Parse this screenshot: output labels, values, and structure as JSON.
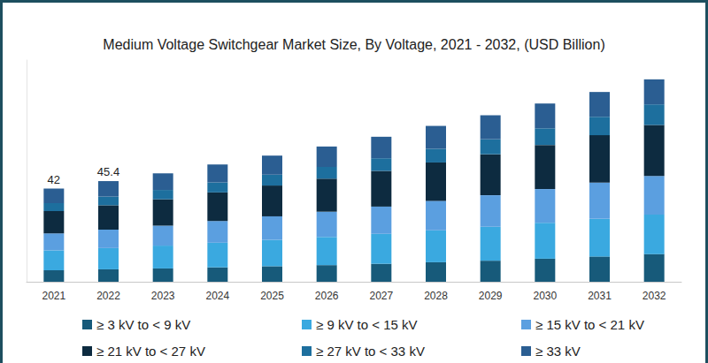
{
  "chart_data": {
    "type": "bar",
    "title": "Medium Voltage Switchgear Market Size, By Voltage, 2021 - 2032, (USD Billion)",
    "categories": [
      "2021",
      "2022",
      "2023",
      "2024",
      "2025",
      "2026",
      "2027",
      "2028",
      "2029",
      "2030",
      "2031",
      "2032"
    ],
    "series": [
      {
        "name": "≥ 3 kV to < 9 kV",
        "color": "#175a7a",
        "values": [
          5.2,
          5.6,
          6.0,
          6.5,
          7.0,
          7.5,
          8.1,
          8.8,
          9.5,
          10.4,
          11.4,
          12.5
        ]
      },
      {
        "name": "≥ 9 kV to < 15 kV",
        "color": "#3aa9e0",
        "values": [
          8.9,
          9.6,
          10.3,
          11.1,
          11.9,
          12.7,
          13.5,
          14.4,
          15.3,
          16.2,
          17.0,
          17.8
        ]
      },
      {
        "name": "≥ 15 kV to < 21 kV",
        "color": "#5b9fe0",
        "values": [
          7.7,
          8.3,
          9.0,
          9.8,
          10.6,
          11.4,
          12.3,
          13.3,
          14.2,
          15.2,
          16.3,
          17.4
        ]
      },
      {
        "name": "≥ 21 kV to < 27 kV",
        "color": "#0d2b40",
        "values": [
          10.1,
          11.0,
          11.9,
          12.9,
          13.9,
          14.9,
          16.1,
          17.3,
          18.5,
          19.9,
          21.4,
          23.0
        ]
      },
      {
        "name": "≥ 27 kV to < 33 kV",
        "color": "#1d6f9e",
        "values": [
          3.6,
          3.9,
          4.2,
          4.5,
          4.9,
          5.3,
          5.7,
          6.2,
          6.8,
          7.5,
          8.3,
          9.3
        ]
      },
      {
        "name": "≥ 33 kV",
        "color": "#2b5e92",
        "values": [
          6.5,
          7.0,
          7.5,
          8.1,
          8.6,
          9.2,
          9.7,
          10.3,
          10.8,
          11.2,
          11.2,
          11.3
        ]
      }
    ],
    "annotations": [
      {
        "x": "2021",
        "y": 42,
        "text": "42"
      },
      {
        "x": "2022",
        "y": 45.4,
        "text": "45.4"
      }
    ],
    "ylim": [
      0,
      100
    ],
    "yticks": [],
    "stacked": true,
    "grid": false,
    "tick_labels": "x",
    "legend": "bottom"
  }
}
